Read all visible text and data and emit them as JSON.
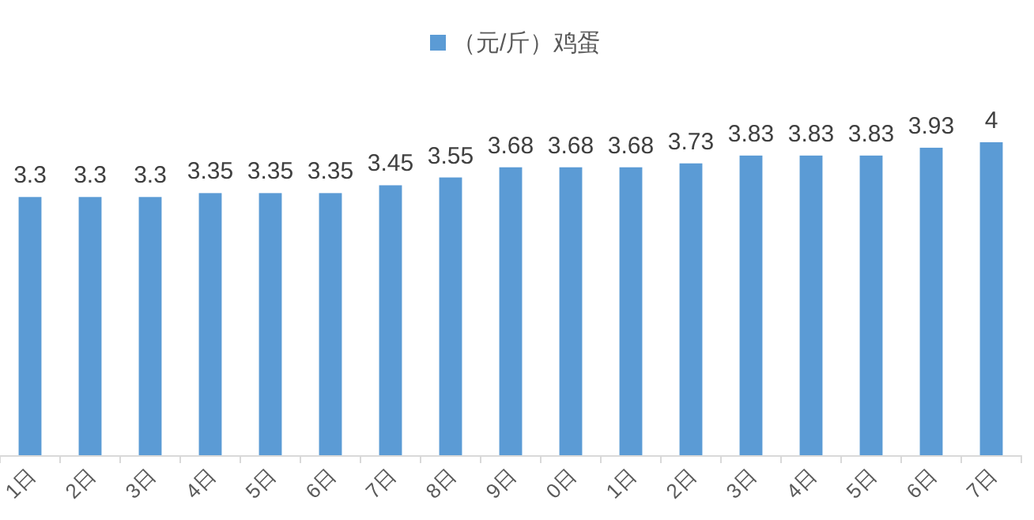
{
  "chart_data": {
    "type": "bar",
    "categories": [
      "1日",
      "2日",
      "3日",
      "4日",
      "5日",
      "6日",
      "7日",
      "8日",
      "9日",
      "0日",
      "1日",
      "2日",
      "3日",
      "4日",
      "5日",
      "6日",
      "7日"
    ],
    "series": [
      {
        "name": "（元/斤）鸡蛋",
        "color": "#5b9bd5",
        "values": [
          3.3,
          3.3,
          3.3,
          3.35,
          3.35,
          3.35,
          3.45,
          3.55,
          3.68,
          3.68,
          3.68,
          3.73,
          3.83,
          3.83,
          3.83,
          3.93,
          4
        ]
      }
    ],
    "data_labels": true,
    "legend": "top"
  }
}
